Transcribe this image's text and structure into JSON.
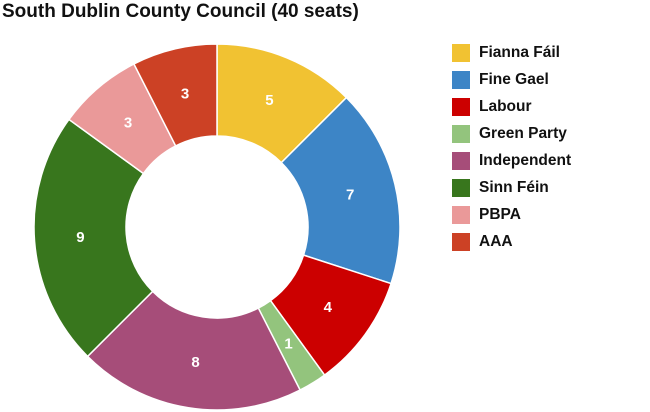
{
  "chart_data": {
    "type": "pie",
    "title": "South Dublin County Council (40 seats)",
    "donut": true,
    "legend_position": "right",
    "series": [
      {
        "name": "Fianna Fáil",
        "value": 5,
        "color": "#f1c232"
      },
      {
        "name": "Fine Gael",
        "value": 7,
        "color": "#3d85c6"
      },
      {
        "name": "Labour",
        "value": 4,
        "color": "#cc0000"
      },
      {
        "name": "Green Party",
        "value": 1,
        "color": "#93c47d"
      },
      {
        "name": "Independent",
        "value": 8,
        "color": "#a64d79"
      },
      {
        "name": "Sinn Féin",
        "value": 9,
        "color": "#38761d"
      },
      {
        "name": "PBPA",
        "value": 3,
        "color": "#ea9999"
      },
      {
        "name": "AAA",
        "value": 3,
        "color": "#cc4125"
      }
    ]
  }
}
